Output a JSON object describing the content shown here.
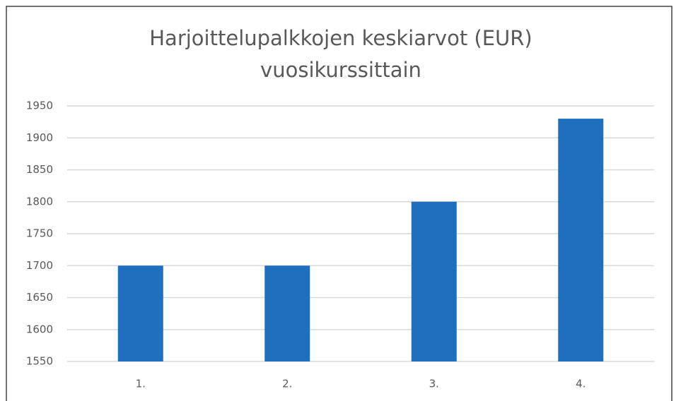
{
  "chart_data": {
    "type": "bar",
    "title": [
      "Harjoittelupalkkojen keskiarvot (EUR)",
      "vuosikurssittain"
    ],
    "categories": [
      "1.",
      "2.",
      "3.",
      "4."
    ],
    "values": [
      1700,
      1700,
      1800,
      1930
    ],
    "color": "#1f6fbf",
    "ylim": [
      1550,
      1950
    ],
    "yticks": [
      1550,
      1600,
      1650,
      1700,
      1750,
      1800,
      1850,
      1900,
      1950
    ],
    "grid": true
  }
}
